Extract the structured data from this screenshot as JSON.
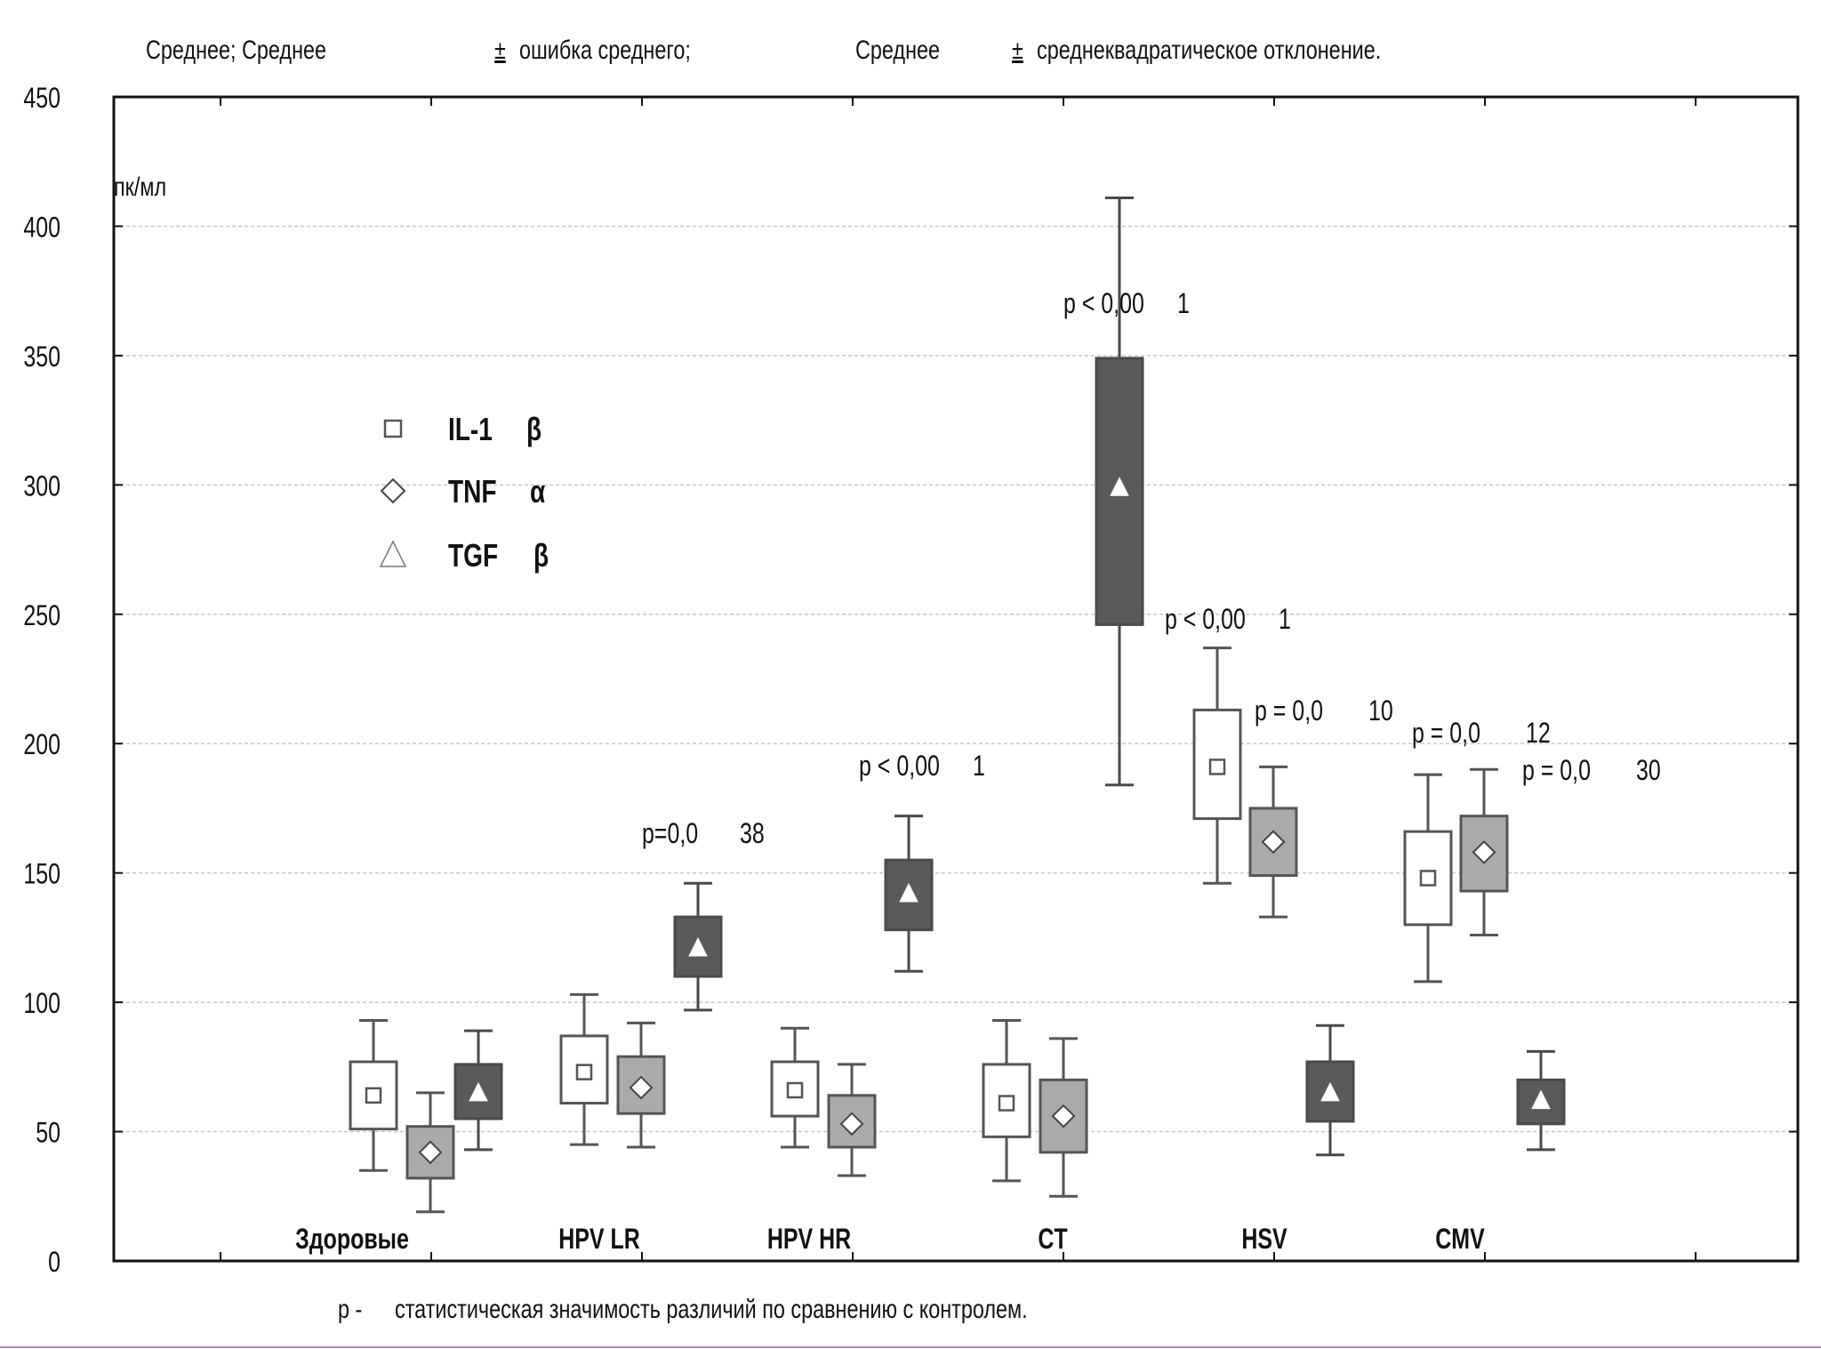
{
  "header": {
    "part1": "Среднее;  Среднее",
    "pm1": "±",
    "part2": "ошибка среднего;",
    "part3": "Среднее",
    "pm2": "±",
    "part4": "среднеквадратическое отклонение."
  },
  "footer": {
    "p_label": "p -",
    "text": "статистическая значимость различий по сравнению с контролем."
  },
  "chart_data": {
    "type": "box",
    "ylabel": "пк/мл",
    "ylim": [
      0,
      450
    ],
    "yticks": [
      "0",
      "50",
      "100",
      "150",
      "200",
      "250",
      "300",
      "350",
      "400",
      "450"
    ],
    "grid": true,
    "legend_position": "top-left",
    "legend": [
      {
        "marker": "square",
        "name": "IL-1",
        "greek": "β"
      },
      {
        "marker": "diamond",
        "name": "TNF",
        "greek": "α"
      },
      {
        "marker": "triangle",
        "name": "TGF",
        "greek": "β"
      }
    ],
    "categories": [
      "Здоровые",
      "HPV LR",
      "HPV HR",
      "CT",
      "HSV",
      "CMV"
    ],
    "series": [
      {
        "marker": "square",
        "fill": "#ffffff",
        "mean": [
          64,
          73,
          66,
          61,
          191,
          148
        ],
        "se_low": [
          51,
          61,
          56,
          48,
          171,
          130
        ],
        "se_high": [
          77,
          87,
          77,
          76,
          213,
          166
        ],
        "sd_low": [
          35,
          45,
          44,
          31,
          146,
          108
        ],
        "sd_high": [
          93,
          103,
          90,
          93,
          237,
          188
        ]
      },
      {
        "marker": "diamond",
        "fill": "#aaaaaa",
        "mean": [
          42,
          67,
          53,
          56,
          162,
          158
        ],
        "se_low": [
          32,
          57,
          44,
          42,
          149,
          143
        ],
        "se_high": [
          52,
          79,
          64,
          70,
          175,
          172
        ],
        "sd_low": [
          19,
          44,
          33,
          25,
          133,
          126
        ],
        "sd_high": [
          65,
          92,
          76,
          86,
          191,
          190
        ]
      },
      {
        "marker": "triangle",
        "fill": "#5a5a5a",
        "mean": [
          65,
          121,
          142,
          299,
          65,
          62
        ],
        "se_low": [
          55,
          110,
          128,
          246,
          54,
          53
        ],
        "se_high": [
          76,
          133,
          155,
          349,
          77,
          70
        ],
        "sd_low": [
          43,
          97,
          112,
          184,
          41,
          43
        ],
        "sd_high": [
          89,
          146,
          172,
          411,
          91,
          81
        ]
      }
    ],
    "annotations": [
      {
        "category": "HPV LR",
        "series": 2,
        "parts": [
          "p=0,0",
          "38"
        ]
      },
      {
        "category": "HPV HR",
        "series": 2,
        "parts": [
          "p  <  0,00",
          "1"
        ]
      },
      {
        "category": "CT",
        "series": 2,
        "parts": [
          "p  <  0,00",
          "1"
        ]
      },
      {
        "category": "HSV",
        "series": 0,
        "parts": [
          "p  <  0,00",
          "1"
        ]
      },
      {
        "category": "HSV",
        "series": 1,
        "parts": [
          "p  =  0,0",
          "10"
        ]
      },
      {
        "category": "CMV",
        "series": 0,
        "parts": [
          "p  =  0,0",
          "12"
        ]
      },
      {
        "category": "CMV",
        "series": 1,
        "parts": [
          "p  =  0,0",
          "30"
        ]
      }
    ]
  }
}
